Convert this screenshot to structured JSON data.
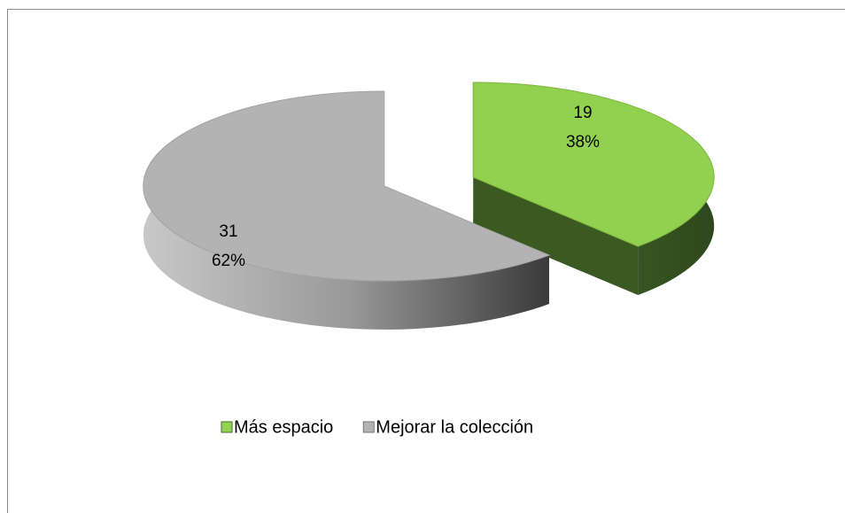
{
  "chart_data": {
    "type": "pie3d",
    "categories": [
      "Más espacio",
      "Mejorar la colección"
    ],
    "values": [
      19,
      31
    ],
    "percentage_labels": [
      "38%",
      "62%"
    ],
    "colors": [
      "#92d050",
      "#b3b3b3"
    ],
    "side_colors": [
      "#3b5a22",
      "#555555"
    ],
    "exploded": true,
    "legend": "bottom"
  }
}
